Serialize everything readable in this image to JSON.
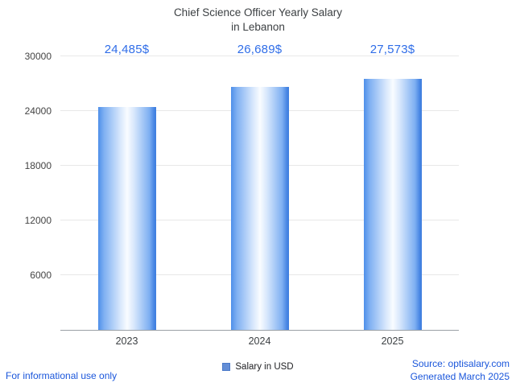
{
  "title": {
    "line1": "Chief Science Officer Yearly Salary",
    "line2": "in Lebanon"
  },
  "chart_data": {
    "type": "bar",
    "title": "Chief Science Officer Yearly Salary in Lebanon",
    "categories": [
      "2023",
      "2024",
      "2025"
    ],
    "values": [
      24485,
      26689,
      27573
    ],
    "value_labels": [
      "24,485$",
      "26,689$",
      "27,573$"
    ],
    "series": [
      {
        "name": "Salary in USD",
        "values": [
          24485,
          26689,
          27573
        ]
      }
    ],
    "xlabel": "",
    "ylabel": "",
    "ylim": [
      0,
      30000
    ],
    "yticks": [
      6000,
      12000,
      18000,
      24000,
      30000
    ],
    "grid": true,
    "legend_position": "bottom",
    "bar_edge_color": "#4e8fe9",
    "bar_center_color": "#f9fcff"
  },
  "legend": {
    "label": "Salary in USD",
    "swatch_color": "#648ed6"
  },
  "footer": {
    "left": "For informational use only",
    "source": "Source: optisalary.com",
    "generated": "Generated March 2025"
  },
  "colors": {
    "value_label": "#2f6de8",
    "footer_link": "#1a56db",
    "title": "#3c4043",
    "axis_label": "#444444",
    "gridline": "#e8e8e8",
    "axis_line": "#9aa0a6"
  }
}
